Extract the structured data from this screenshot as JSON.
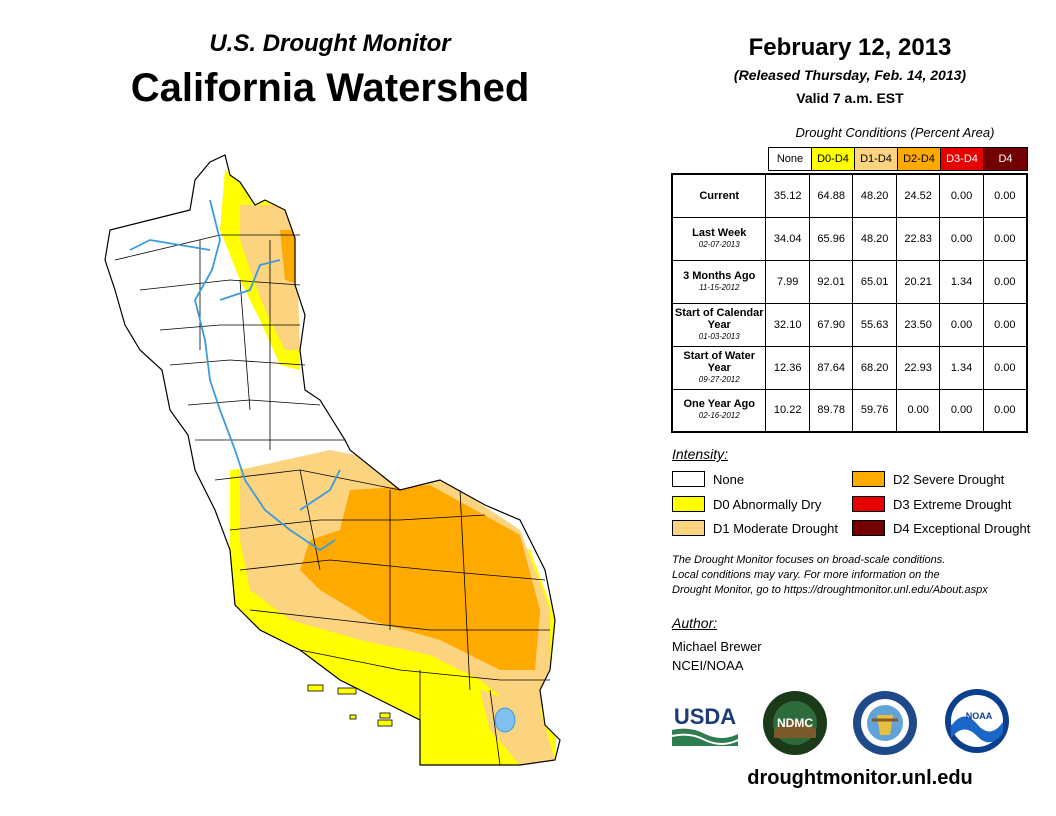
{
  "header": {
    "subtitle": "U.S. Drought Monitor",
    "title": "California Watershed",
    "date": "February 12, 2013",
    "released": "(Released Thursday, Feb. 14, 2013)",
    "valid": "Valid 7 a.m. EST"
  },
  "table": {
    "title": "Drought Conditions (Percent Area)",
    "columns": [
      {
        "label": "None",
        "color": "#ffffff",
        "text": "#000000"
      },
      {
        "label": "D0-D4",
        "color": "#ffff00",
        "text": "#000000"
      },
      {
        "label": "D1-D4",
        "color": "#fcd37f",
        "text": "#000000"
      },
      {
        "label": "D2-D4",
        "color": "#ffaa00",
        "text": "#000000"
      },
      {
        "label": "D3-D4",
        "color": "#e60000",
        "text": "#ffffff"
      },
      {
        "label": "D4",
        "color": "#730000",
        "text": "#ffffff"
      }
    ],
    "rows": [
      {
        "label": "Current",
        "date": "",
        "values": [
          "35.12",
          "64.88",
          "48.20",
          "24.52",
          "0.00",
          "0.00"
        ]
      },
      {
        "label": "Last Week",
        "date": "02-07-2013",
        "values": [
          "34.04",
          "65.96",
          "48.20",
          "22.83",
          "0.00",
          "0.00"
        ]
      },
      {
        "label": "3 Months Ago",
        "date": "11-15-2012",
        "values": [
          "7.99",
          "92.01",
          "65.01",
          "20.21",
          "1.34",
          "0.00"
        ]
      },
      {
        "label": "Start of Calendar Year",
        "date": "01-03-2013",
        "values": [
          "32.10",
          "67.90",
          "55.63",
          "23.50",
          "0.00",
          "0.00"
        ]
      },
      {
        "label": "Start of Water Year",
        "date": "09-27-2012",
        "values": [
          "12.36",
          "87.64",
          "68.20",
          "22.93",
          "1.34",
          "0.00"
        ]
      },
      {
        "label": "One Year Ago",
        "date": "02-16-2012",
        "values": [
          "10.22",
          "89.78",
          "59.76",
          "0.00",
          "0.00",
          "0.00"
        ]
      }
    ]
  },
  "legend": {
    "title": "Intensity:",
    "items": [
      {
        "label": "None",
        "color": "#ffffff"
      },
      {
        "label": "D0 Abnormally Dry",
        "color": "#ffff00"
      },
      {
        "label": "D1 Moderate Drought",
        "color": "#fcd37f"
      },
      {
        "label": "D2 Severe Drought",
        "color": "#ffaa00"
      },
      {
        "label": "D3 Extreme Drought",
        "color": "#e60000"
      },
      {
        "label": "D4 Exceptional Drought",
        "color": "#730000"
      }
    ]
  },
  "note": {
    "line1": "The Drought Monitor focuses on broad-scale conditions.",
    "line2": "Local conditions may vary. For more information on the",
    "line3": "Drought Monitor, go to https://droughtmonitor.unl.edu/About.aspx"
  },
  "author": {
    "title": "Author:",
    "name": "Michael Brewer",
    "org": "NCEI/NOAA"
  },
  "logos": {
    "usda": "USDA",
    "ndmc": "NDMC",
    "noaa": "NOAA"
  },
  "footer": {
    "url": "droughtmonitor.unl.edu"
  },
  "map": {
    "region": "California Watershed",
    "colors": {
      "d0": "#ffff00",
      "d1": "#fcd37f",
      "d2": "#ffaa00",
      "river": "#3b9be0",
      "outline": "#000000"
    }
  }
}
